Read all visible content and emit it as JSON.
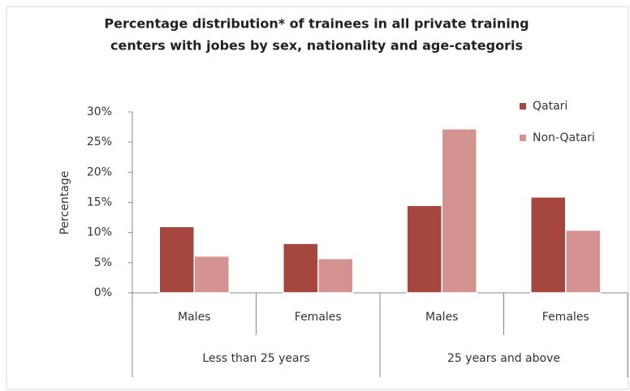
{
  "chart_data": {
    "type": "bar",
    "title": [
      "Percentage distribution* of  trainees in all private training",
      "centers with jobes by sex, nationality and age-categoris"
    ],
    "y_label": "Percentage",
    "categories": [
      "Males",
      "Females",
      "Males",
      "Females"
    ],
    "groups": [
      "Less than 25 years",
      "25 years and above"
    ],
    "series": [
      {
        "name": "Qatari",
        "color": "#a5473f",
        "values": [
          11.0,
          8.2,
          14.5,
          15.9
        ]
      },
      {
        "name": "Non-Qatari",
        "color": "#d49390",
        "values": [
          6.1,
          5.7,
          27.2,
          10.4
        ]
      }
    ],
    "ylim": [
      0,
      30
    ],
    "yticks": [
      {
        "value": 0,
        "label": "0%"
      },
      {
        "value": 5,
        "label": "5%"
      },
      {
        "value": 10,
        "label": "10%"
      },
      {
        "value": 15,
        "label": "15%"
      },
      {
        "value": 20,
        "label": "20%"
      },
      {
        "value": 25,
        "label": "25%"
      },
      {
        "value": 30,
        "label": "30%"
      }
    ],
    "legend": "top-right"
  }
}
